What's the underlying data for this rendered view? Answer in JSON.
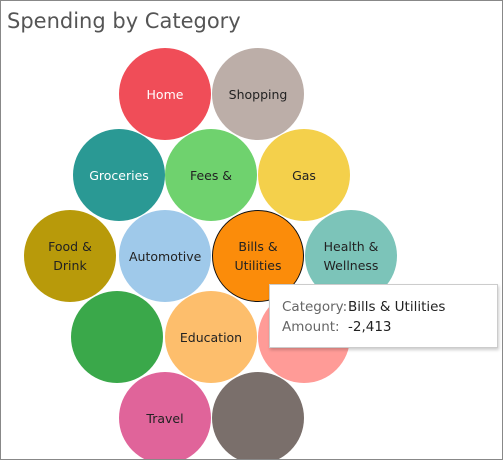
{
  "chart_data": {
    "type": "packed-bubble",
    "title": "Spending by Category",
    "categories": [
      "Home",
      "Shopping",
      "Groceries",
      "Fees &",
      "Gas",
      "Food & Drink",
      "Automotive",
      "Bills & Utilities",
      "Health & Wellness",
      null,
      "Education",
      null,
      "Travel",
      null
    ],
    "colors": [
      "#f04d58",
      "#bcaea8",
      "#2a9994",
      "#6fd26e",
      "#f4d04b",
      "#b89a0a",
      "#9fc9ea",
      "#fb8c0a",
      "#7cc4b9",
      "#3aa84a",
      "#fdbe6c",
      "#ff9b97",
      "#e0649a",
      "#7a6f6b"
    ],
    "highlighted": 7,
    "tooltip": {
      "category_label": "Category:",
      "category": "Bills & Utilities",
      "amount_label": "Amount:",
      "amount": -2413,
      "amount_value_label": "-2,413"
    }
  }
}
